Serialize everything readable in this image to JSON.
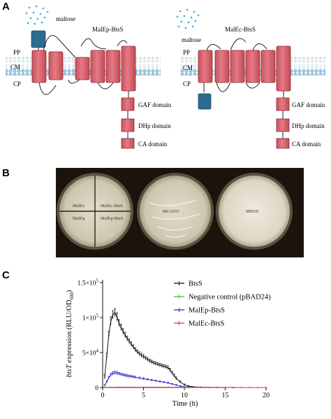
{
  "panels": {
    "a": {
      "letter": "A",
      "left": {
        "ligand": "maltose",
        "construct": "MalEp-BtsS",
        "layers": [
          "PP",
          "CM",
          "CP"
        ],
        "domains": [
          "GAF domain",
          "DHp domain",
          "CA domain"
        ]
      },
      "right": {
        "ligand": "maltose",
        "construct": "MalEc-BtsS",
        "layers": [
          "PP",
          "CM",
          "CP"
        ],
        "domains": [
          "GAF domain",
          "DHp domain",
          "CA domain"
        ]
      }
    },
    "b": {
      "letter": "B",
      "plate1_labels": [
        "MalEc",
        "MalEc-BtsS",
        "MalEp",
        "MalEp-BtsS"
      ],
      "plate2_label": "MG1655",
      "plate3_label": "MM39"
    },
    "c": {
      "letter": "C"
    }
  },
  "colors": {
    "helix": "#d9636e",
    "helix_stroke": "#8a2e36",
    "blue_domain": "#2d6b91",
    "dots": "#4fb3d9",
    "membrane_head": "#9fc7e0",
    "membrane_tail": "#c7dce9"
  },
  "chart_data": {
    "type": "line",
    "xlabel": "Time (h)",
    "ylabel_parts": [
      "btsT",
      " expression (RLU/OD",
      "600",
      ")"
    ],
    "xlim": [
      0,
      20
    ],
    "ylim": [
      0,
      150000
    ],
    "x_ticks": [
      "0",
      "5",
      "10",
      "15",
      "20"
    ],
    "y_ticks": [
      {
        "value": 0,
        "mant": "0",
        "exp": ""
      },
      {
        "value": 50000,
        "mant": "5×10",
        "exp": "4"
      },
      {
        "value": 100000,
        "mant": "1×10",
        "exp": "5"
      },
      {
        "value": 150000,
        "mant": "1.5×10",
        "exp": "5"
      }
    ],
    "legend_position": "top-right",
    "series": [
      {
        "name": "BtsS",
        "color": "#111111",
        "x": [
          0.25,
          0.5,
          0.75,
          1.0,
          1.25,
          1.5,
          1.75,
          2.0,
          2.25,
          2.5,
          2.75,
          3.0,
          3.25,
          3.5,
          3.75,
          4.0,
          4.25,
          4.5,
          4.75,
          5.0,
          5.25,
          5.5,
          5.75,
          6.0,
          6.25,
          6.5,
          6.75,
          7.0,
          7.25,
          7.5,
          7.75,
          8.0,
          8.25,
          8.5,
          8.75,
          9.0,
          9.5,
          10.0,
          10.5,
          11,
          12,
          13,
          14,
          15,
          16,
          17,
          18,
          19,
          20
        ],
        "y": [
          15000,
          45000,
          75000,
          95000,
          104000,
          107000,
          101000,
          92000,
          86000,
          80000,
          75000,
          70000,
          66000,
          62000,
          58000,
          54000,
          51000,
          48000,
          46000,
          44000,
          42000,
          40000,
          38000,
          36500,
          35000,
          34000,
          33000,
          32000,
          31000,
          30000,
          29500,
          28000,
          25000,
          21000,
          17000,
          13000,
          8000,
          4000,
          2000,
          1000,
          500,
          300,
          200,
          100,
          100,
          0,
          0,
          0,
          0
        ],
        "err": [
          3000,
          4000,
          5000,
          6000,
          6000,
          6000,
          5500,
          5000,
          4500,
          4000,
          4000,
          3500,
          3500,
          3500,
          3000,
          3000,
          3000,
          3000,
          3000,
          3000,
          2500,
          2500,
          2500,
          2500,
          2500,
          2500,
          2500,
          2500,
          2500,
          2500,
          2500,
          2500,
          2500,
          2000,
          2000,
          2000,
          1500,
          1000,
          800,
          500,
          300,
          200,
          100,
          100,
          100,
          0,
          0,
          0,
          0
        ]
      },
      {
        "name": "Negative control (pBAD24)",
        "color": "#3cc43c",
        "x": [
          0.25,
          1,
          2,
          3,
          4,
          5,
          6,
          7,
          8,
          9,
          10,
          11,
          12,
          13,
          14,
          15,
          16,
          17,
          18,
          19,
          20
        ],
        "y": [
          300,
          400,
          500,
          500,
          500,
          500,
          500,
          500,
          400,
          400,
          300,
          200,
          200,
          100,
          100,
          100,
          0,
          0,
          0,
          0,
          0
        ],
        "err": [
          200,
          200,
          200,
          200,
          200,
          200,
          200,
          200,
          200,
          200,
          200,
          100,
          100,
          100,
          100,
          100,
          0,
          0,
          0,
          0,
          0
        ]
      },
      {
        "name": "MalEp-BtsS",
        "color": "#2b2bd6",
        "x": [
          0.25,
          0.5,
          0.75,
          1.0,
          1.25,
          1.5,
          1.75,
          2.0,
          2.25,
          2.5,
          2.75,
          3.0,
          3.25,
          3.5,
          3.75,
          4.0,
          4.5,
          5.0,
          5.5,
          6.0,
          6.5,
          7.0,
          7.5,
          8.0,
          8.5,
          9.0,
          9.5,
          10.0,
          10.5,
          11,
          12,
          13,
          14,
          15,
          16,
          17,
          18,
          19,
          20
        ],
        "y": [
          3000,
          8000,
          14000,
          18000,
          20000,
          21000,
          20500,
          19500,
          18500,
          18000,
          17000,
          16500,
          16000,
          15500,
          15000,
          14500,
          13500,
          12500,
          11500,
          10500,
          9500,
          8500,
          7500,
          6500,
          5000,
          3500,
          2000,
          1000,
          500,
          300,
          200,
          100,
          0,
          0,
          0,
          0,
          0,
          0,
          0
        ],
        "err": [
          1000,
          1500,
          2000,
          2500,
          2500,
          2500,
          2500,
          2000,
          2000,
          2000,
          2000,
          2000,
          1800,
          1800,
          1500,
          1500,
          1500,
          1500,
          1200,
          1200,
          1000,
          1000,
          1000,
          1000,
          800,
          800,
          600,
          400,
          300,
          200,
          100,
          100,
          0,
          0,
          0,
          0,
          0,
          0,
          0
        ]
      },
      {
        "name": "MalEc-BtsS",
        "color": "#e03a3a",
        "x": [
          0.25,
          1,
          2,
          3,
          4,
          5,
          6,
          7,
          8,
          9,
          10,
          11,
          12,
          13,
          14,
          15,
          16,
          17,
          18,
          19,
          20
        ],
        "y": [
          200,
          300,
          300,
          300,
          300,
          300,
          300,
          300,
          300,
          200,
          200,
          100,
          100,
          100,
          0,
          0,
          0,
          0,
          0,
          0,
          0
        ],
        "err": [
          100,
          100,
          100,
          100,
          100,
          100,
          100,
          100,
          100,
          100,
          100,
          100,
          100,
          100,
          0,
          0,
          0,
          0,
          0,
          0,
          0
        ]
      }
    ]
  }
}
